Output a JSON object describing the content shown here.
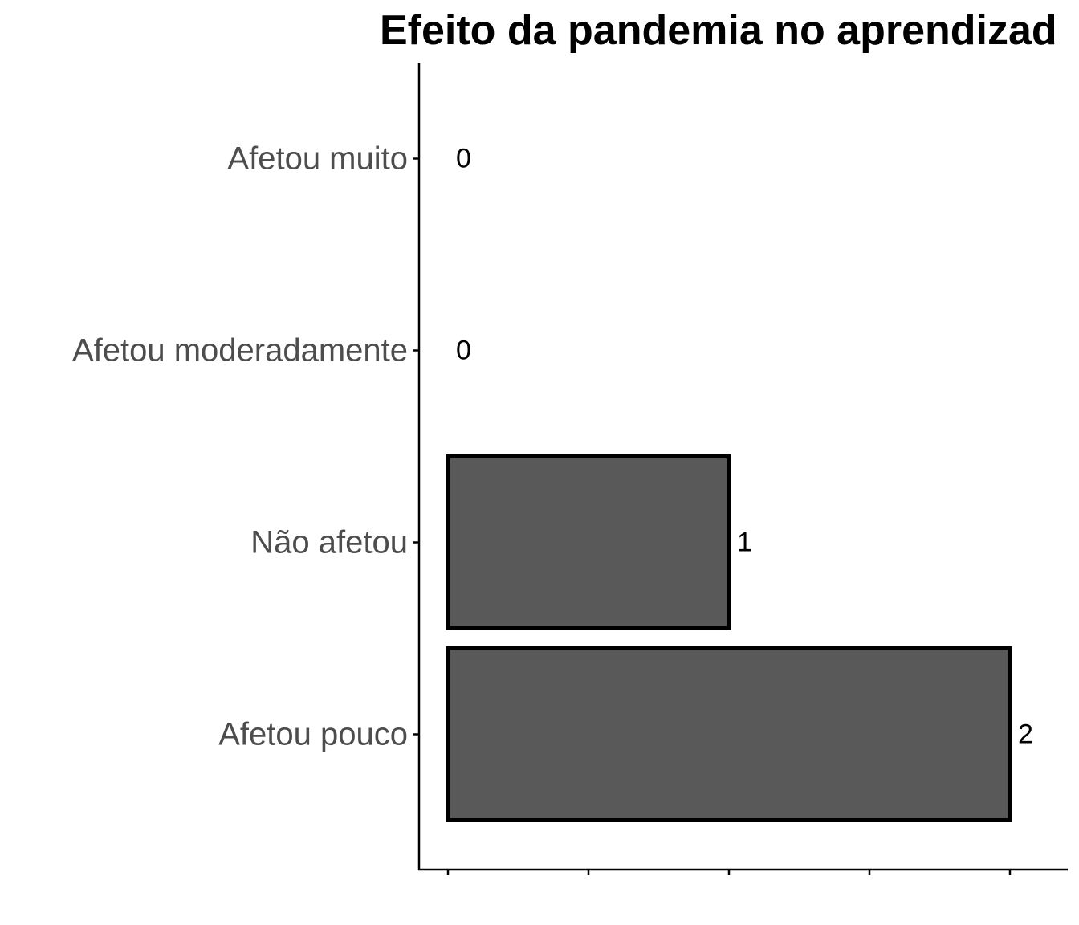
{
  "chart_data": {
    "type": "bar",
    "orientation": "horizontal",
    "title": "Efeito da pandemia no aprendizad",
    "categories": [
      "Afetou muito",
      "Afetou moderadamente",
      "Não afetou",
      "Afetou pouco"
    ],
    "values": [
      0,
      0,
      1,
      2
    ],
    "data_labels": [
      "0",
      "0",
      "1",
      "2"
    ],
    "xlabel": "",
    "ylabel": "",
    "xlim": [
      0,
      2.2
    ],
    "x_ticks": [
      0,
      0.5,
      1,
      1.5,
      2
    ],
    "x_tick_labels_shown": false,
    "grid": false,
    "legend": "none",
    "colors": {
      "bar_fill": "#595959",
      "bar_outline": "#000000",
      "category_text": "#4d4d4d",
      "axis": "#000000"
    }
  }
}
